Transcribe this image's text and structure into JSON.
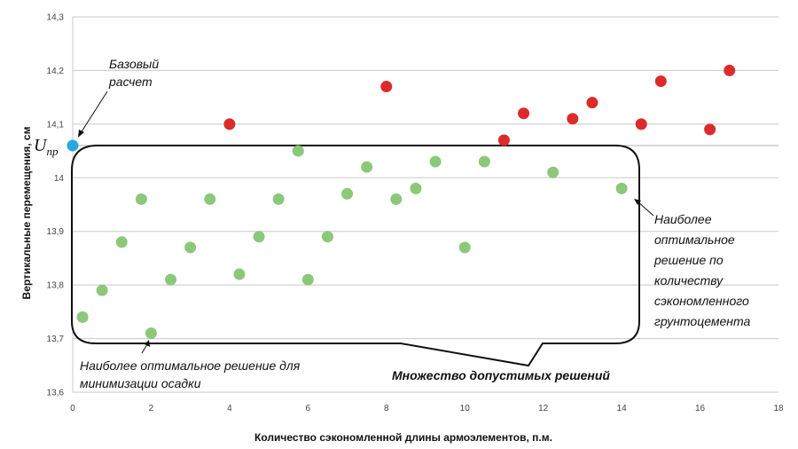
{
  "chart_data": {
    "type": "scatter",
    "title": "",
    "xlabel": "Количество сэкономленной длины армоэлементов, п.м.",
    "ylabel": "Вертикальные перемещения, см",
    "xlim": [
      0,
      18
    ],
    "ylim": [
      13.6,
      14.3
    ],
    "x_ticks": [
      "0",
      "2",
      "4",
      "6",
      "8",
      "10",
      "12",
      "14",
      "16",
      "18"
    ],
    "y_ticks": [
      "13,6",
      "13,7",
      "13,8",
      "13,9",
      "14",
      "14,1",
      "14,2",
      "14,3"
    ],
    "grid": "horizontal",
    "colors": {
      "feasible": "#8cc87a",
      "infeasible": "#dc2b2b",
      "base": "#2aa7e0"
    },
    "series": [
      {
        "points": [
          {
            "x": 0.25,
            "y": 13.74
          },
          {
            "x": 0.75,
            "y": 13.79
          },
          {
            "x": 1.25,
            "y": 13.88
          },
          {
            "x": 1.75,
            "y": 13.96
          },
          {
            "x": 2.0,
            "y": 13.71
          },
          {
            "x": 2.5,
            "y": 13.81
          },
          {
            "x": 3.0,
            "y": 13.87
          },
          {
            "x": 3.5,
            "y": 13.96
          },
          {
            "x": 4.25,
            "y": 13.82
          },
          {
            "x": 4.75,
            "y": 13.89
          },
          {
            "x": 5.25,
            "y": 13.96
          },
          {
            "x": 5.75,
            "y": 14.05
          },
          {
            "x": 6.0,
            "y": 13.81
          },
          {
            "x": 6.5,
            "y": 13.89
          },
          {
            "x": 7.0,
            "y": 13.97
          },
          {
            "x": 7.5,
            "y": 14.02
          },
          {
            "x": 8.25,
            "y": 13.96
          },
          {
            "x": 8.75,
            "y": 13.98
          },
          {
            "x": 9.25,
            "y": 14.03
          },
          {
            "x": 10.0,
            "y": 13.87
          },
          {
            "x": 10.5,
            "y": 14.03
          },
          {
            "x": 12.25,
            "y": 14.01
          },
          {
            "x": 14.0,
            "y": 13.98
          }
        ]
      },
      {
        "points": [
          {
            "x": 4.0,
            "y": 14.1
          },
          {
            "x": 8.0,
            "y": 14.17
          },
          {
            "x": 11.0,
            "y": 14.07
          },
          {
            "x": 11.5,
            "y": 14.12
          },
          {
            "x": 12.75,
            "y": 14.11
          },
          {
            "x": 13.25,
            "y": 14.14
          },
          {
            "x": 14.5,
            "y": 14.1
          },
          {
            "x": 15.0,
            "y": 14.18
          },
          {
            "x": 16.25,
            "y": 14.09
          },
          {
            "x": 16.75,
            "y": 14.2
          }
        ]
      },
      {
        "points": [
          {
            "x": 0.0,
            "y": 14.06
          }
        ]
      }
    ],
    "threshold": {
      "y": 14.06,
      "label_main": "U",
      "label_sub": "пр"
    },
    "annotations": {
      "base": [
        "Базовый",
        "расчет"
      ],
      "min_settlement": [
        "Наиболее оптимальное решение для",
        "минимизации осадки"
      ],
      "feasible_set": "Множество допустимых решений",
      "optimal_cement": [
        "Наиболее",
        "оптимальное",
        "решение по",
        "количеству",
        "сэкономленного",
        "грунтоцемента"
      ]
    }
  }
}
